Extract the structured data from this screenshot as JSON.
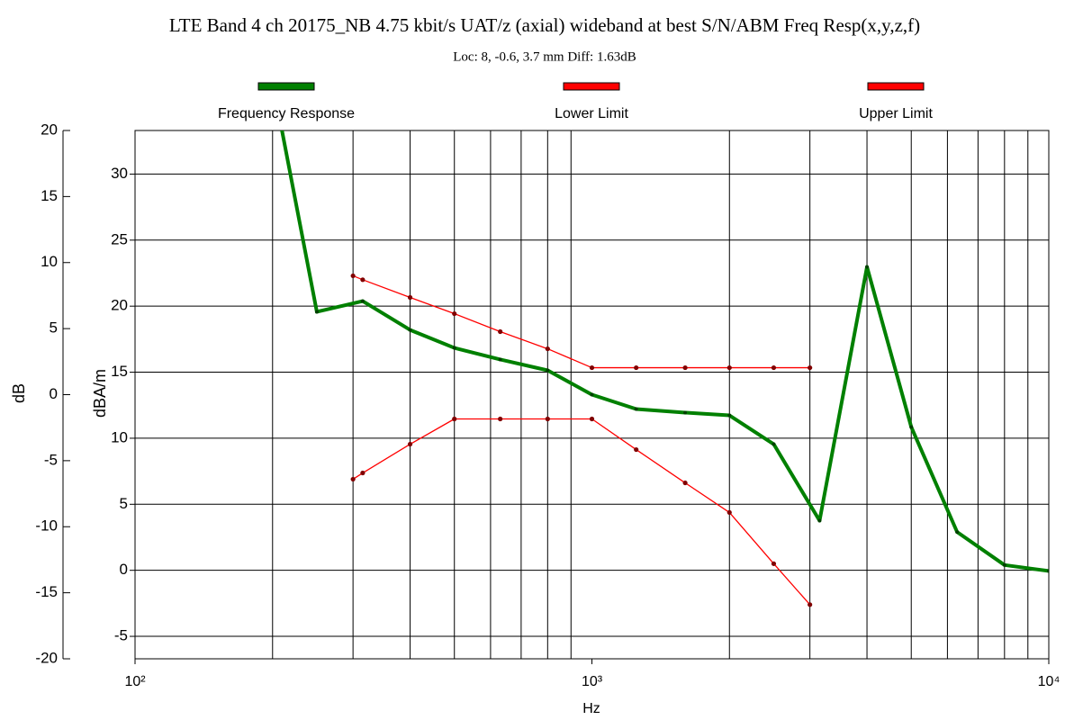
{
  "chart_data": {
    "type": "line",
    "title": "LTE Band 4 ch 20175_NB 4.75 kbit/s UAT/z (axial) wideband at best S/N/ABM Freq Resp(x,y,z,f)",
    "subtitle": "Loc: 8, -0.6, 3.7 mm Diff: 1.63dB",
    "xlabel": "Hz",
    "ylabel": "dB",
    "y2label": "dBA/m",
    "xscale": "log",
    "xlim": [
      100,
      10000
    ],
    "xticks": [
      {
        "value": 100,
        "label": "10²"
      },
      {
        "value": 1000,
        "label": "10³"
      },
      {
        "value": 10000,
        "label": "10⁴"
      }
    ],
    "xgrid": [
      200,
      300,
      400,
      500,
      600,
      700,
      800,
      900,
      2000,
      3000,
      4000,
      5000,
      6000,
      7000,
      8000,
      9000
    ],
    "ylim": [
      -20,
      20
    ],
    "yticks": [
      20,
      15,
      10,
      5,
      0,
      -5,
      -10,
      -15,
      -20
    ],
    "y2lim": [
      -6.7,
      33.3
    ],
    "y2ticks": [
      30,
      25,
      20,
      15,
      10,
      5,
      0,
      -5
    ],
    "grid": true,
    "legend": "top",
    "series": [
      {
        "name": "Frequency Response",
        "color": "#008000",
        "x": [
          200,
          250,
          315,
          400,
          500,
          630,
          800,
          1000,
          1250,
          1600,
          2000,
          2500,
          3150,
          4000,
          5000,
          6300,
          8000,
          10000
        ],
        "values": [
          23.7,
          6.27,
          7.08,
          4.9,
          3.54,
          2.66,
          1.84,
          0,
          -1.09,
          -1.36,
          -1.57,
          -3.75,
          -9.54,
          9.67,
          -2.45,
          -10.4,
          -12.9,
          -13.35
        ]
      },
      {
        "name": "Lower Limit",
        "color": "#ff0000",
        "x": [
          300,
          315,
          400,
          500,
          630,
          800,
          1000,
          1250,
          1600,
          2000,
          2500,
          3000
        ],
        "values": [
          -6.4,
          -5.93,
          -3.75,
          -1.84,
          -1.84,
          -1.84,
          -1.84,
          -4.16,
          -6.68,
          -8.92,
          -12.8,
          -15.9
        ]
      },
      {
        "name": "Upper Limit",
        "color": "#ff0000",
        "x": [
          300,
          315,
          400,
          500,
          630,
          800,
          1000,
          1250,
          1600,
          2000,
          2500,
          3000
        ],
        "values": [
          9.0,
          8.7,
          7.36,
          6.13,
          4.77,
          3.47,
          2.04,
          2.04,
          2.04,
          2.04,
          2.04,
          2.04
        ]
      }
    ]
  }
}
